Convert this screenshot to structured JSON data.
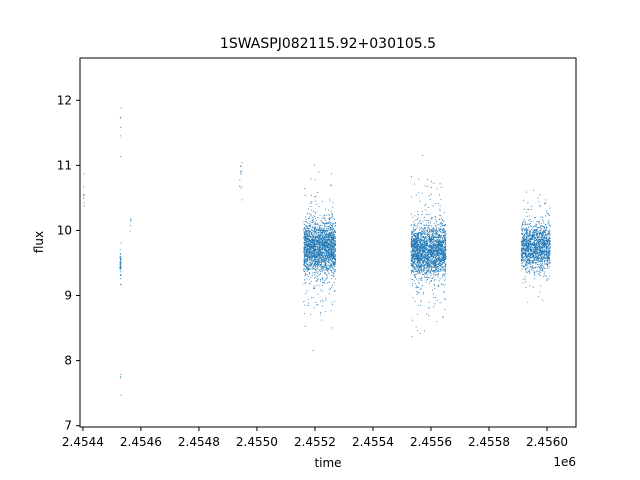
{
  "chart_data": {
    "type": "scatter",
    "title": "1SWASPJ082115.92+030105.5",
    "xlabel": "time",
    "ylabel": "flux",
    "x_offset_label": "1e6",
    "xlim": [
      2454390,
      2456100
    ],
    "ylim": [
      6.98,
      12.65
    ],
    "x_ticks": [
      2454400,
      2454600,
      2454800,
      2455000,
      2455200,
      2455400,
      2455600,
      2455800,
      2456000
    ],
    "x_tick_labels": [
      "2.4544",
      "2.4546",
      "2.4548",
      "2.4550",
      "2.4552",
      "2.4554",
      "2.4556",
      "2.4558",
      "2.4560"
    ],
    "y_ticks": [
      7,
      8,
      9,
      10,
      11,
      12
    ],
    "y_tick_labels": [
      "7",
      "8",
      "9",
      "10",
      "11",
      "12"
    ],
    "grid": false,
    "marker_color": "#1f77b4",
    "series": [
      {
        "clusters": [
          {
            "x_start": 2454400,
            "x_end": 2454404,
            "y_center": 10.5,
            "y_spread": 0.35,
            "count": 8
          },
          {
            "x_start": 2454526,
            "x_end": 2454530,
            "y_center": 9.5,
            "y_spread": 0.35,
            "count": 45
          },
          {
            "x_start": 2454527,
            "x_end": 2454530,
            "y_center": 11.6,
            "y_spread": 0.6,
            "count": 6
          },
          {
            "x_start": 2454527,
            "x_end": 2454530,
            "y_center": 7.7,
            "y_spread": 0.3,
            "count": 4
          },
          {
            "x_start": 2454560,
            "x_end": 2454565,
            "y_center": 10.2,
            "y_spread": 0.4,
            "count": 6
          },
          {
            "x_start": 2454938,
            "x_end": 2454948,
            "y_center": 10.8,
            "y_spread": 0.3,
            "count": 12
          },
          {
            "x_start": 2455160,
            "x_end": 2455270,
            "y_center": 9.75,
            "y_spread": 0.45,
            "count": 1900
          },
          {
            "x_start": 2455160,
            "x_end": 2455270,
            "y_center": 9.7,
            "y_spread": 1.2,
            "count": 260
          },
          {
            "x_start": 2455530,
            "x_end": 2455650,
            "y_center": 9.7,
            "y_spread": 0.45,
            "count": 2000
          },
          {
            "x_start": 2455530,
            "x_end": 2455650,
            "y_center": 9.7,
            "y_spread": 1.25,
            "count": 280
          },
          {
            "x_start": 2455910,
            "x_end": 2456010,
            "y_center": 9.75,
            "y_spread": 0.4,
            "count": 1300
          },
          {
            "x_start": 2455910,
            "x_end": 2456010,
            "y_center": 9.8,
            "y_spread": 1.0,
            "count": 120
          }
        ]
      }
    ]
  }
}
